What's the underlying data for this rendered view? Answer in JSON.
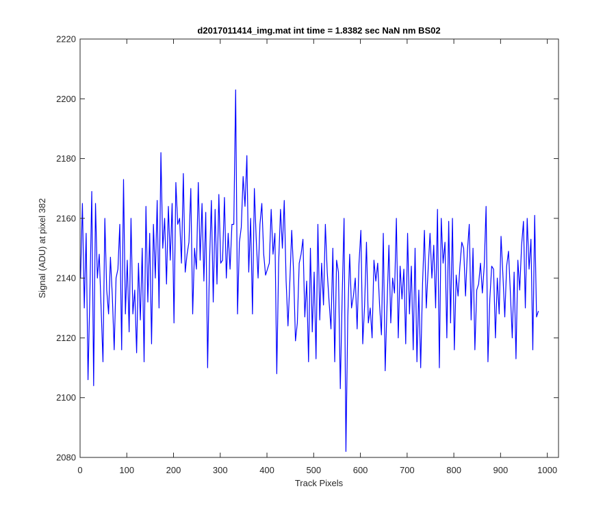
{
  "chart_data": {
    "type": "line",
    "title": "d2017011414_img.mat int time = 1.8382 sec  NaN nm BS02",
    "xlabel": "Track Pixels",
    "ylabel": "Signal (ADU) at pixel 382",
    "xlim": [
      0,
      1024
    ],
    "ylim": [
      2080,
      2220
    ],
    "xticks": [
      0,
      100,
      200,
      300,
      400,
      500,
      600,
      700,
      800,
      900,
      1000
    ],
    "yticks": [
      2080,
      2100,
      2120,
      2140,
      2160,
      2180,
      2200,
      2220
    ],
    "grid": false,
    "legend": "none",
    "series": [
      {
        "color": "#0000ff",
        "x_start": 1,
        "x_step": 4,
        "values": [
          2140,
          2165,
          2130,
          2155,
          2106,
          2135,
          2169,
          2104,
          2165,
          2140,
          2148,
          2130,
          2112,
          2160,
          2136,
          2128,
          2147,
          2134,
          2116,
          2140,
          2143,
          2158,
          2116,
          2173,
          2128,
          2146,
          2122,
          2160,
          2128,
          2136,
          2115,
          2145,
          2126,
          2150,
          2112,
          2164,
          2132,
          2155,
          2118,
          2158,
          2140,
          2166,
          2130,
          2182,
          2150,
          2160,
          2138,
          2164,
          2146,
          2165,
          2125,
          2172,
          2158,
          2160,
          2145,
          2175,
          2142,
          2148,
          2152,
          2170,
          2128,
          2150,
          2143,
          2172,
          2146,
          2165,
          2139,
          2162,
          2110,
          2145,
          2166,
          2132,
          2163,
          2138,
          2168,
          2145,
          2146,
          2167,
          2140,
          2155,
          2143,
          2158,
          2158,
          2203,
          2128,
          2152,
          2157,
          2174,
          2164,
          2181,
          2142,
          2160,
          2128,
          2170,
          2153,
          2140,
          2158,
          2165,
          2148,
          2141,
          2143,
          2145,
          2163,
          2148,
          2155,
          2108,
          2145,
          2163,
          2150,
          2166,
          2139,
          2124,
          2139,
          2156,
          2142,
          2119,
          2125,
          2145,
          2148,
          2153,
          2127,
          2139,
          2112,
          2150,
          2122,
          2142,
          2113,
          2158,
          2126,
          2145,
          2131,
          2158,
          2142,
          2132,
          2123,
          2150,
          2112,
          2146,
          2142,
          2103,
          2134,
          2160,
          2082,
          2127,
          2148,
          2130,
          2134,
          2140,
          2123,
          2145,
          2156,
          2118,
          2131,
          2152,
          2125,
          2130,
          2120,
          2146,
          2139,
          2145,
          2131,
          2121,
          2155,
          2109,
          2131,
          2151,
          2125,
          2140,
          2135,
          2160,
          2120,
          2144,
          2133,
          2143,
          2118,
          2155,
          2128,
          2144,
          2116,
          2150,
          2112,
          2136,
          2110,
          2138,
          2156,
          2130,
          2143,
          2155,
          2140,
          2151,
          2130,
          2163,
          2110,
          2160,
          2145,
          2152,
          2120,
          2159,
          2125,
          2160,
          2116,
          2141,
          2134,
          2144,
          2152,
          2150,
          2134,
          2149,
          2158,
          2126,
          2150,
          2116,
          2136,
          2138,
          2145,
          2135,
          2144,
          2164,
          2112,
          2133,
          2144,
          2143,
          2120,
          2140,
          2128,
          2154,
          2141,
          2127,
          2144,
          2149,
          2135,
          2120,
          2142,
          2113,
          2146,
          2136,
          2151,
          2159,
          2130,
          2160,
          2143,
          2153,
          2116,
          2161,
          2127,
          2129
        ]
      }
    ]
  }
}
